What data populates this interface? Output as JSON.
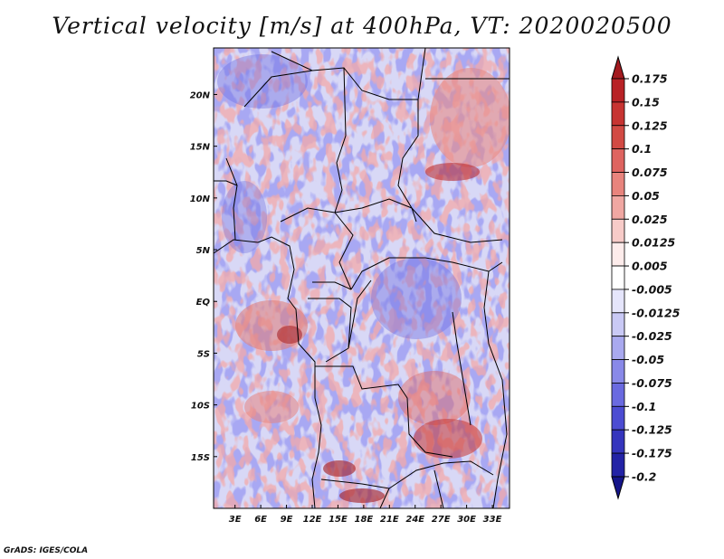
{
  "title": "Vertical velocity [m/s] at 400hPa, VT: 2020020500",
  "credit": "GrADS: IGES/COLA",
  "chart_data": {
    "type": "heatmap",
    "variable": "Vertical velocity",
    "units": "m/s",
    "level": "400hPa",
    "valid_time": "2020020500",
    "lat_ticks": [
      "20N",
      "15N",
      "10N",
      "5N",
      "EQ",
      "5S",
      "10S",
      "15S"
    ],
    "lat_values": [
      20,
      15,
      10,
      5,
      0,
      -5,
      -10,
      -15
    ],
    "lon_ticks": [
      "3E",
      "6E",
      "9E",
      "12E",
      "15E",
      "18E",
      "21E",
      "24E",
      "27E",
      "30E",
      "33E"
    ],
    "lon_values": [
      3,
      6,
      9,
      12,
      15,
      18,
      21,
      24,
      27,
      30,
      33
    ],
    "lon_range": [
      0.5,
      35
    ],
    "lat_range": [
      -20,
      24.5
    ],
    "colorbar_labels": [
      "0.175",
      "0.15",
      "0.125",
      "0.1",
      "0.075",
      "0.05",
      "0.025",
      "0.0125",
      "0.005",
      "-0.005",
      "-0.0125",
      "-0.025",
      "-0.05",
      "-0.075",
      "-0.1",
      "-0.125",
      "-0.175",
      "-0.2"
    ],
    "colorbar_colors": [
      "#a31a1f",
      "#b82226",
      "#c73432",
      "#d24a44",
      "#de6460",
      "#e8847d",
      "#f0a7a2",
      "#f7cbc8",
      "#fdeceb",
      "#ffffff",
      "#e5e5fb",
      "#c9c9f5",
      "#a9a9ef",
      "#8989e8",
      "#6a6ae0",
      "#4c4cd2",
      "#3535bd",
      "#2323a6",
      "#15158a"
    ]
  }
}
